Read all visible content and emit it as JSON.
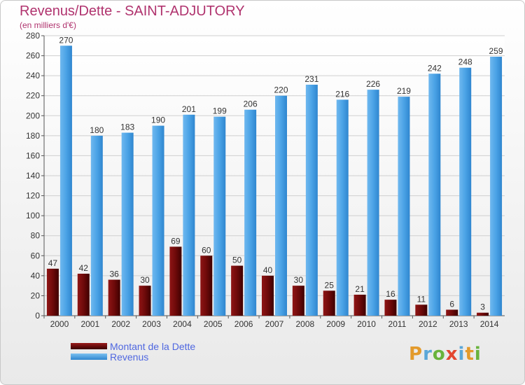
{
  "header": {
    "title": "Revenus/Dette - SAINT-ADJUTORY",
    "subtitle": "(en milliers d'€)"
  },
  "legend": [
    {
      "label": "Montant de la Dette",
      "color": "#6e0a0a"
    },
    {
      "label": "Revenus",
      "color": "#4ba3e6"
    }
  ],
  "logo": {
    "text": "Proxiti",
    "letters": [
      "P",
      "r",
      "o",
      "x",
      "i",
      "t",
      "i"
    ],
    "colors": [
      "#e39a2b",
      "#5ba7d8",
      "#69b33c",
      "#e3462f",
      "#5ba7d8",
      "#e39a2b",
      "#69b33c"
    ]
  },
  "chart_data": {
    "type": "bar",
    "title": "Revenus/Dette - SAINT-ADJUTORY",
    "subtitle": "(en milliers d'€)",
    "categories": [
      "2000",
      "2001",
      "2002",
      "2003",
      "2004",
      "2005",
      "2006",
      "2007",
      "2008",
      "2009",
      "2010",
      "2011",
      "2012",
      "2013",
      "2014"
    ],
    "series": [
      {
        "name": "Montant de la Dette",
        "color": "#6e0a0a",
        "values": [
          47,
          42,
          36,
          30,
          69,
          60,
          50,
          40,
          30,
          25,
          21,
          16,
          11,
          6,
          3
        ]
      },
      {
        "name": "Revenus",
        "color": "#4ba3e6",
        "values": [
          270,
          180,
          183,
          190,
          201,
          199,
          206,
          220,
          231,
          216,
          226,
          219,
          242,
          248,
          259
        ]
      }
    ],
    "ylim": [
      0,
      280
    ],
    "yticks": [
      0,
      20,
      40,
      60,
      80,
      100,
      120,
      140,
      160,
      180,
      200,
      220,
      240,
      260,
      280
    ],
    "grid": true,
    "legend_position": "bottom-left"
  }
}
